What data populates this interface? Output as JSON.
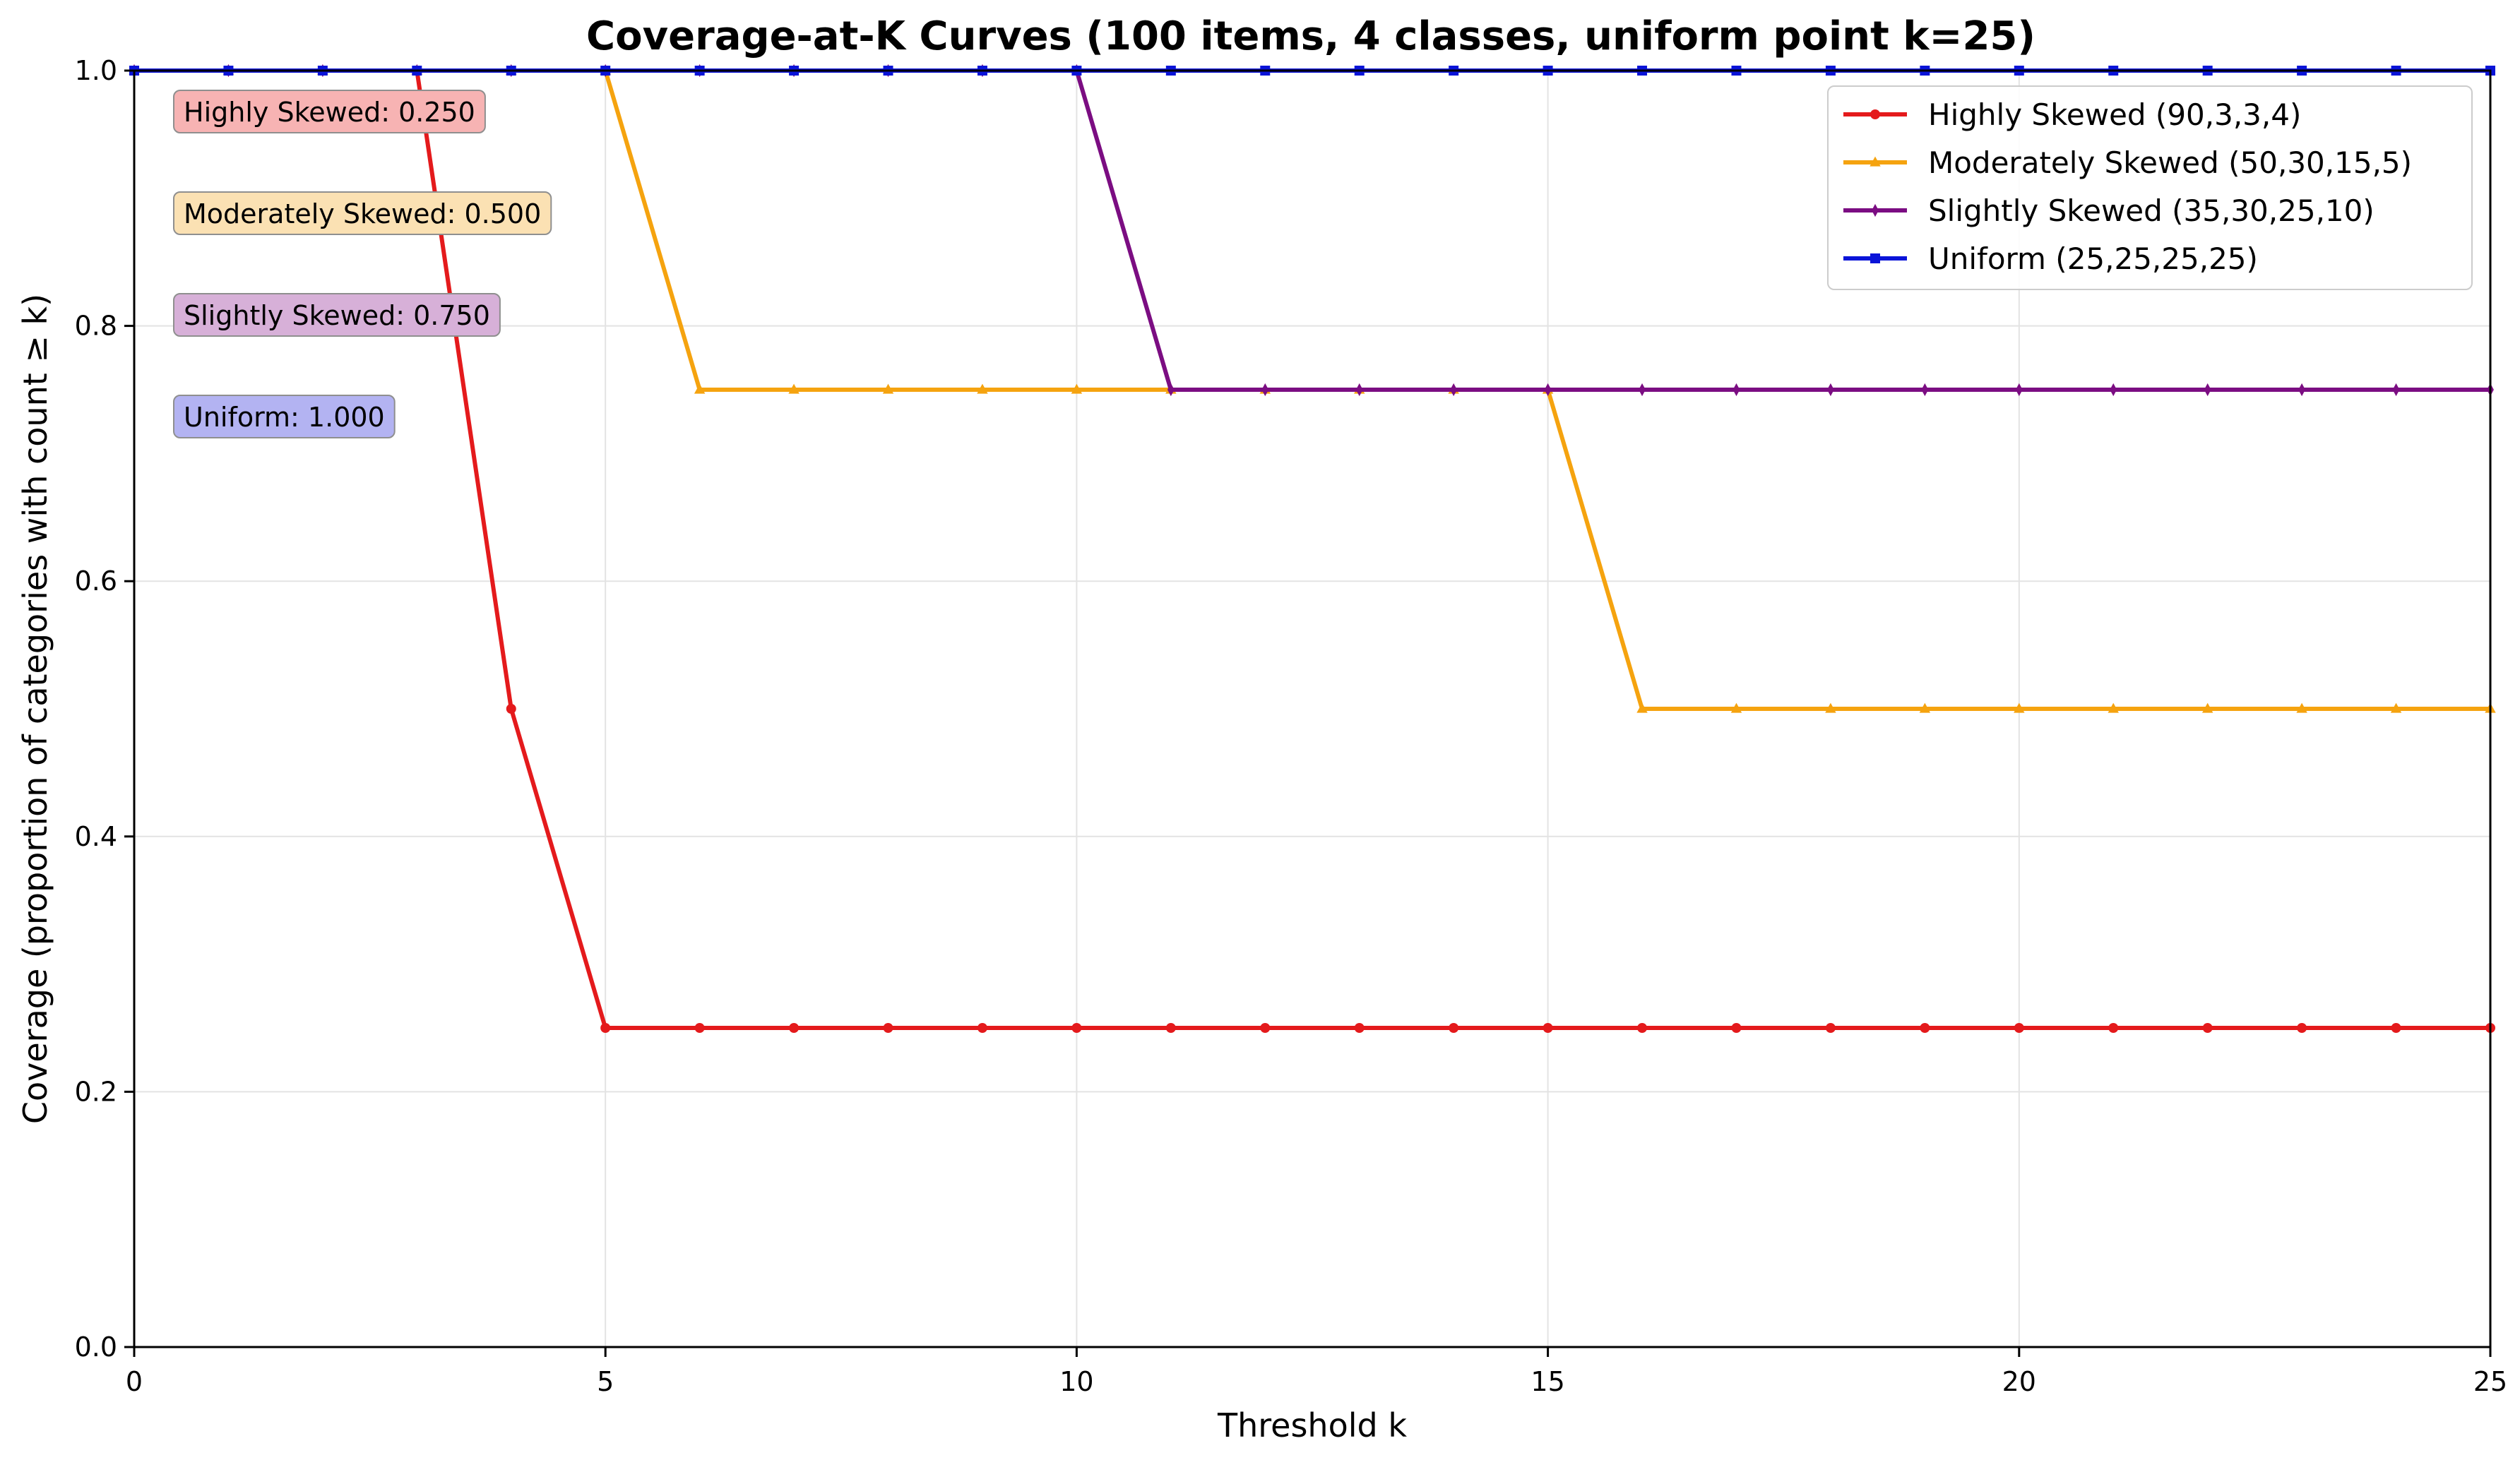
{
  "chart_data": {
    "type": "line",
    "title": "Coverage-at-K Curves (100 items, 4 classes, uniform point k=25)",
    "xlabel": "Threshold k",
    "ylabel": "Coverage (proportion of categories with count ≥ k)",
    "xlim": [
      0,
      25
    ],
    "ylim": [
      0,
      1
    ],
    "xticks": [
      "0",
      "5",
      "10",
      "15",
      "20",
      "25"
    ],
    "yticks": [
      "0.0",
      "0.2",
      "0.4",
      "0.6",
      "0.8",
      "1.0"
    ],
    "grid": true,
    "legend_position": "top-right",
    "x": [
      0,
      1,
      2,
      3,
      4,
      5,
      6,
      7,
      8,
      9,
      10,
      11,
      12,
      13,
      14,
      15,
      16,
      17,
      18,
      19,
      20,
      21,
      22,
      23,
      24,
      25
    ],
    "series": [
      {
        "name": "Highly Skewed (90,3,3,4)",
        "color": "#e41a1c",
        "marker": "circle",
        "values": [
          1,
          1,
          1,
          1,
          0.5,
          0.25,
          0.25,
          0.25,
          0.25,
          0.25,
          0.25,
          0.25,
          0.25,
          0.25,
          0.25,
          0.25,
          0.25,
          0.25,
          0.25,
          0.25,
          0.25,
          0.25,
          0.25,
          0.25,
          0.25,
          0.25
        ]
      },
      {
        "name": "Moderately Skewed (50,30,15,5)",
        "color": "#f5a30f",
        "marker": "triangle",
        "values": [
          1,
          1,
          1,
          1,
          1,
          1,
          0.75,
          0.75,
          0.75,
          0.75,
          0.75,
          0.75,
          0.75,
          0.75,
          0.75,
          0.75,
          0.5,
          0.5,
          0.5,
          0.5,
          0.5,
          0.5,
          0.5,
          0.5,
          0.5,
          0.5
        ]
      },
      {
        "name": "Slightly Skewed (35,30,25,10)",
        "color": "#7b0d82",
        "marker": "diamond",
        "values": [
          1,
          1,
          1,
          1,
          1,
          1,
          1,
          1,
          1,
          1,
          1,
          0.75,
          0.75,
          0.75,
          0.75,
          0.75,
          0.75,
          0.75,
          0.75,
          0.75,
          0.75,
          0.75,
          0.75,
          0.75,
          0.75,
          0.75
        ]
      },
      {
        "name": "Uniform (25,25,25,25)",
        "color": "#0a14d8",
        "marker": "square",
        "values": [
          1,
          1,
          1,
          1,
          1,
          1,
          1,
          1,
          1,
          1,
          1,
          1,
          1,
          1,
          1,
          1,
          1,
          1,
          1,
          1,
          1,
          1,
          1,
          1,
          1,
          1
        ]
      }
    ],
    "annotations": [
      {
        "text": "Highly Skewed: 0.250",
        "bg": "#f7b3b3"
      },
      {
        "text": "Moderately Skewed: 0.500",
        "bg": "#fbe1b3"
      },
      {
        "text": "Slightly Skewed: 0.750",
        "bg": "#d7b0d8"
      },
      {
        "text": "Uniform: 1.000",
        "bg": "#b3b3f2"
      }
    ]
  }
}
